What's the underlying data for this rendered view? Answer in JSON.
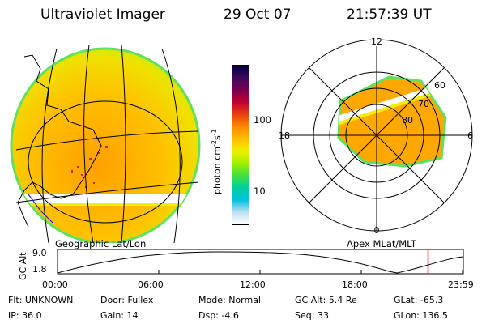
{
  "header": {
    "instrument": "Ultraviolet Imager",
    "date": "29 Oct 07",
    "time": "21:57:39 UT"
  },
  "geo_panel": {
    "caption": "Geographic Lat/Lon"
  },
  "polar_panel": {
    "caption": "Apex MLat/MLT",
    "mlt_labels": {
      "top": "12",
      "left": "18",
      "right": "6",
      "bottom": "0"
    },
    "lat_labels": [
      "60",
      "70",
      "80"
    ]
  },
  "colorbar": {
    "unit_label": "photon cm",
    "unit_exp1": "-2",
    "unit_s": "s",
    "unit_exp2": "-1",
    "ticks": [
      "100",
      "10"
    ],
    "colors": [
      "#000040",
      "#3a0a5a",
      "#7a0050",
      "#c00030",
      "#e84010",
      "#ff8800",
      "#ffc000",
      "#f0f000",
      "#a0f000",
      "#40e040",
      "#00d0a0",
      "#00c0e0",
      "#c0e0f0",
      "#ffffff"
    ]
  },
  "altitude_plot": {
    "ylabel": "GC Alt",
    "yticks": [
      "9.0",
      "1.8"
    ],
    "xticks": [
      "00:00",
      "06:00",
      "12:00",
      "18:00",
      "23:59"
    ],
    "marker_hour": 21.96
  },
  "info": {
    "row1": [
      {
        "label": "Flt:",
        "value": "UNKNOWN"
      },
      {
        "label": "Door:",
        "value": "Fullex"
      },
      {
        "label": "Mode:",
        "value": "Normal"
      },
      {
        "label": "GC Alt:",
        "value": "5.4 Re"
      },
      {
        "label": "GLat:",
        "value": "-65.3"
      }
    ],
    "row2": [
      {
        "label": "IP:",
        "value": "36.0"
      },
      {
        "label": "Gain:",
        "value": "14"
      },
      {
        "label": "Dsp:",
        "value": "-4.6"
      },
      {
        "label": "Seq:",
        "value": "33"
      },
      {
        "label": "GLon:",
        "value": "136.5"
      }
    ]
  }
}
